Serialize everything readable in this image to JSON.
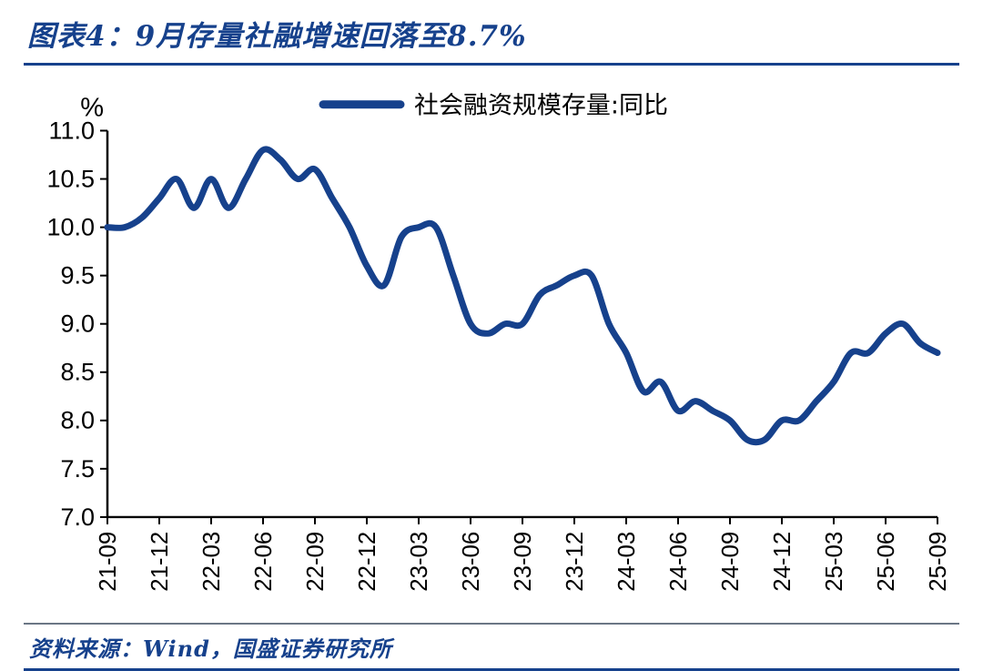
{
  "header": {
    "title": "图表4：9月存量社融增速回落至8.7%",
    "accent_color": "#16418c"
  },
  "footer": {
    "source": "资料来源：Wind，国盛证券研究所"
  },
  "chart_data": {
    "type": "line",
    "title": "图表4：9月存量社融增速回落至8.7%",
    "unit_label": "%",
    "legend": "社会融资规模存量:同比",
    "legend_position": "top",
    "line_color": "#16418c",
    "axis_color": "#000000",
    "grid": false,
    "ylim": [
      7.0,
      11.0
    ],
    "y_ticks": [
      7.0,
      7.5,
      8.0,
      8.5,
      9.0,
      9.5,
      10.0,
      10.5,
      11.0
    ],
    "x": [
      "21-09",
      "21-10",
      "21-11",
      "21-12",
      "22-01",
      "22-02",
      "22-03",
      "22-04",
      "22-05",
      "22-06",
      "22-07",
      "22-08",
      "22-09",
      "22-10",
      "22-11",
      "22-12",
      "23-01",
      "23-02",
      "23-03",
      "23-04",
      "23-05",
      "23-06",
      "23-07",
      "23-08",
      "23-09",
      "23-10",
      "23-11",
      "23-12",
      "24-01",
      "24-02",
      "24-03",
      "24-04",
      "24-05",
      "24-06",
      "24-07",
      "24-08",
      "24-09",
      "24-10",
      "24-11",
      "24-12",
      "25-01",
      "25-02",
      "25-03",
      "25-04",
      "25-05",
      "25-06",
      "25-07",
      "25-08",
      "25-09"
    ],
    "values": [
      10.0,
      10.0,
      10.1,
      10.3,
      10.5,
      10.2,
      10.5,
      10.2,
      10.5,
      10.8,
      10.7,
      10.5,
      10.6,
      10.3,
      10.0,
      9.6,
      9.4,
      9.9,
      10.0,
      10.0,
      9.5,
      9.0,
      8.9,
      9.0,
      9.0,
      9.3,
      9.4,
      9.5,
      9.5,
      9.0,
      8.7,
      8.3,
      8.4,
      8.1,
      8.2,
      8.1,
      8.0,
      7.8,
      7.8,
      8.0,
      8.0,
      8.2,
      8.4,
      8.7,
      8.7,
      8.9,
      9.0,
      8.8,
      8.7
    ],
    "x_tick_labels": [
      "21-09",
      "21-12",
      "22-03",
      "22-06",
      "22-09",
      "22-12",
      "23-03",
      "23-06",
      "23-09",
      "23-12",
      "24-03",
      "24-06",
      "24-09",
      "24-12",
      "25-03",
      "25-06",
      "25-09"
    ],
    "x_tick_every": 3,
    "xlabel": "",
    "ylabel": "%"
  }
}
